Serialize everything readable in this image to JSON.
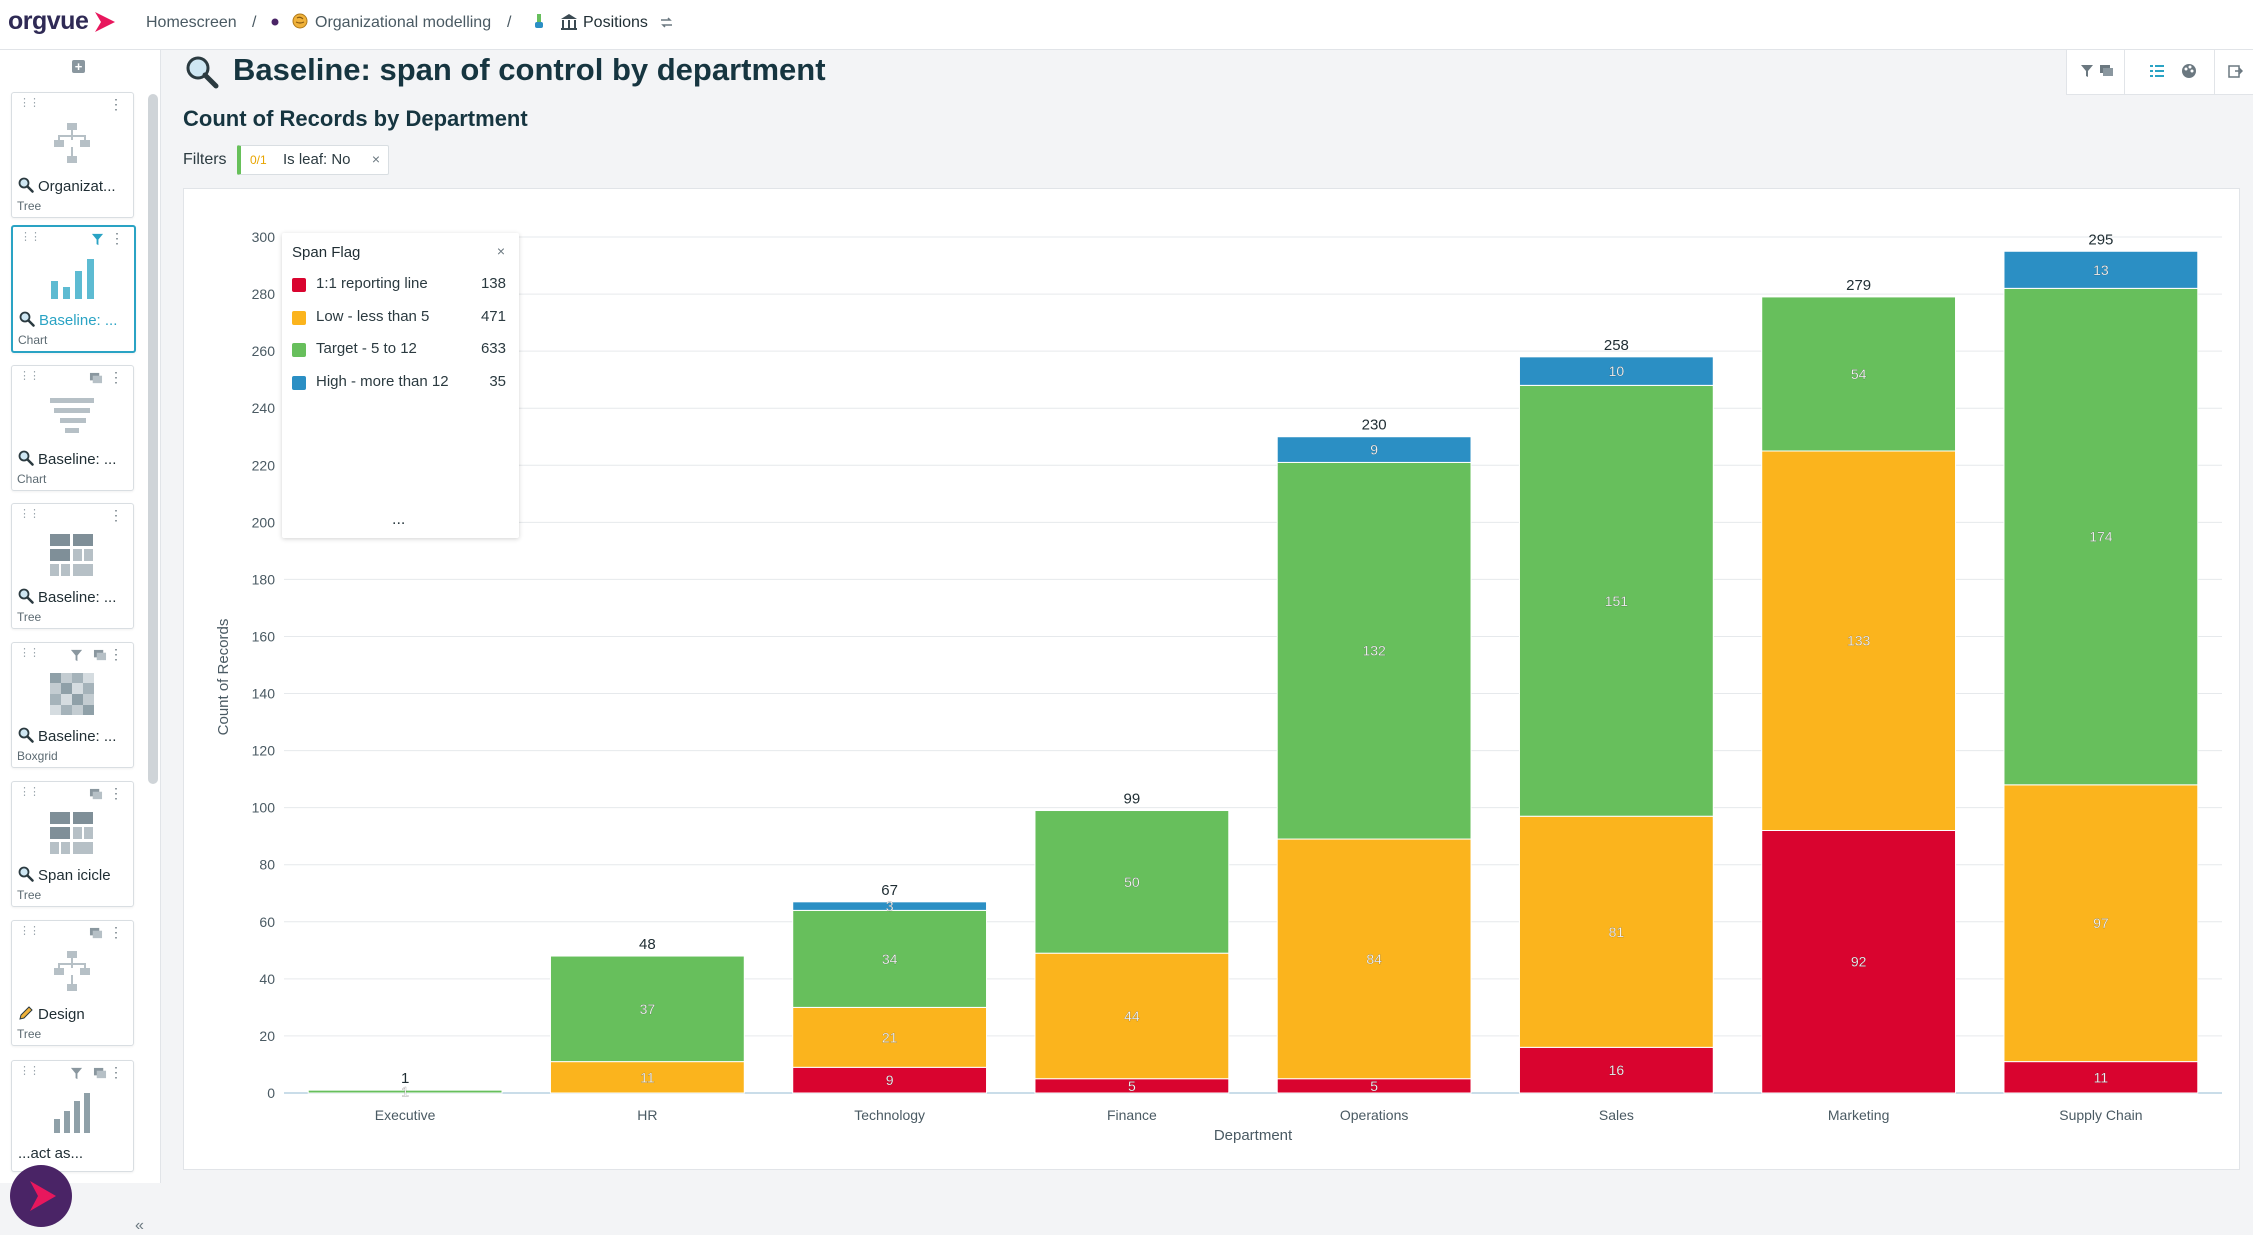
{
  "app": {
    "logo": "orgvue"
  },
  "breadcrumb": {
    "home": "Homescreen",
    "model": "Organizational modelling",
    "dataset": "Positions",
    "sep": "/"
  },
  "sidebar": {
    "items": [
      {
        "name": "Organizat...",
        "kind": "Tree",
        "lead": "search-icon"
      },
      {
        "name": "Baseline: ...",
        "kind": "Chart",
        "lead": "search-icon",
        "active": true
      },
      {
        "name": "Baseline: ...",
        "kind": "Chart",
        "lead": "search-icon"
      },
      {
        "name": "Baseline: ...",
        "kind": "Tree",
        "lead": "search-icon"
      },
      {
        "name": "Baseline: ...",
        "kind": "Boxgrid",
        "lead": "search-icon"
      },
      {
        "name": "Span icicle",
        "kind": "Tree",
        "lead": "search-icon"
      },
      {
        "name": "Design",
        "kind": "Tree",
        "lead": "pencil-icon"
      },
      {
        "name": "...act as...",
        "kind": "",
        "lead": ""
      }
    ],
    "collapse": "«"
  },
  "page": {
    "title": "Baseline: span of control by department",
    "subtitle": "Count of Records by Department"
  },
  "filters": {
    "label": "Filters",
    "chip": {
      "type": "0/1",
      "text": "Is leaf: No",
      "close": "×"
    }
  },
  "legend": {
    "title": "Span Flag",
    "close": "×",
    "more": "...",
    "items": [
      {
        "name": "1:1 reporting line",
        "count": "138",
        "color": "#d9042f"
      },
      {
        "name": "Low - less than 5",
        "count": "471",
        "color": "#fbb41d"
      },
      {
        "name": "Target - 5 to 12",
        "count": "633",
        "color": "#67bf5c"
      },
      {
        "name": "High - more than 12",
        "count": "35",
        "color": "#2b8fc4"
      }
    ]
  },
  "chart_data": {
    "type": "bar",
    "stacked": true,
    "xlabel": "Department",
    "ylabel": "Count of Records",
    "ylim": [
      0,
      300
    ],
    "yticks": [
      0,
      20,
      40,
      60,
      80,
      100,
      120,
      140,
      160,
      180,
      200,
      220,
      240,
      260,
      280,
      300
    ],
    "grid": true,
    "categories": [
      "Executive",
      "HR",
      "Technology",
      "Finance",
      "Operations",
      "Sales",
      "Marketing",
      "Supply Chain"
    ],
    "totals": [
      1,
      48,
      67,
      99,
      230,
      258,
      279,
      295
    ],
    "series": [
      {
        "name": "1:1 reporting line",
        "color": "#d9042f",
        "values": [
          0,
          0,
          9,
          5,
          5,
          16,
          92,
          11
        ]
      },
      {
        "name": "Low - less than 5",
        "color": "#fbb41d",
        "values": [
          0,
          11,
          21,
          44,
          84,
          81,
          133,
          97
        ]
      },
      {
        "name": "Target - 5 to 12",
        "color": "#67bf5c",
        "values": [
          1,
          37,
          34,
          50,
          132,
          151,
          54,
          174
        ]
      },
      {
        "name": "High - more than 12",
        "color": "#2b8fc4",
        "values": [
          0,
          0,
          3,
          0,
          9,
          10,
          0,
          13
        ]
      }
    ]
  }
}
